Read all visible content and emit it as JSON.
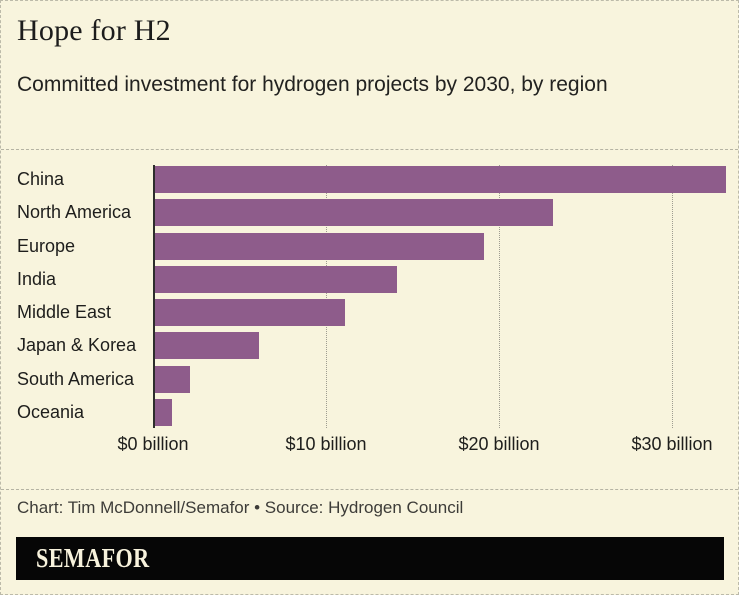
{
  "chart_data": {
    "type": "bar",
    "orientation": "horizontal",
    "title": "Hope for H2",
    "subtitle": "Committed investment for hydrogen projects by 2030, by region",
    "categories": [
      "China",
      "North America",
      "Europe",
      "India",
      "Middle East",
      "Japan & Korea",
      "South America",
      "Oceania"
    ],
    "values": [
      33,
      23,
      19,
      14,
      11,
      6,
      2,
      1
    ],
    "unit": "$ billion",
    "tick_values": [
      0,
      10,
      20,
      30
    ],
    "tick_labels": [
      "$0 billion",
      "$10 billion",
      "$20 billion",
      "$30 billion"
    ],
    "xlim": [
      0,
      33.1
    ],
    "grid": "dotted-vertical",
    "legend": "none",
    "bar_color": "#8e5c8b"
  },
  "footer": {
    "credit": "Chart: Tim McDonnell/Semafor • Source: Hydrogen Council"
  },
  "logo": {
    "text": "SEMAFOR"
  },
  "colors": {
    "background": "#f8f4dd",
    "bar": "#8e5c8b",
    "axis": "#2d2d2b",
    "logo_background": "#060606",
    "logo_text": "#f7f2dc"
  }
}
